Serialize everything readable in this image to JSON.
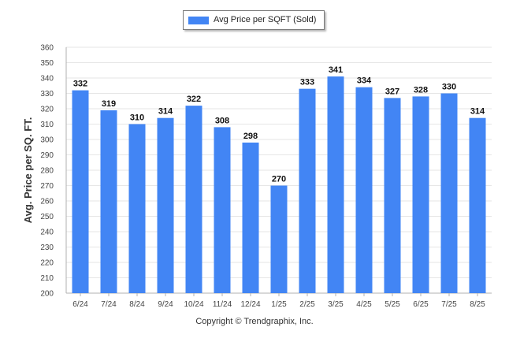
{
  "chart_data": {
    "type": "bar",
    "categories": [
      "6/24",
      "7/24",
      "8/24",
      "9/24",
      "10/24",
      "11/24",
      "12/24",
      "1/25",
      "2/25",
      "3/25",
      "4/25",
      "5/25",
      "6/25",
      "7/25",
      "8/25"
    ],
    "series": [
      {
        "name": "Avg Price per SQFT (Sold)",
        "values": [
          332,
          319,
          310,
          314,
          322,
          308,
          298,
          270,
          333,
          341,
          334,
          327,
          328,
          330,
          314
        ]
      }
    ],
    "title": "",
    "xlabel": "",
    "ylabel": "Avg. Price per SQ. FT.",
    "ylim": [
      200,
      360
    ],
    "yticks": [
      200,
      210,
      220,
      230,
      240,
      250,
      260,
      270,
      280,
      290,
      300,
      310,
      320,
      330,
      340,
      350,
      360
    ],
    "grid": true,
    "legend": "top-center",
    "data_labels": true
  },
  "colors": {
    "bar": "#4285f4",
    "grid": "#e6e6e6",
    "axis": "#b0b0b0"
  },
  "footer": {
    "copyright": "Copyright © Trendgraphix, Inc."
  }
}
